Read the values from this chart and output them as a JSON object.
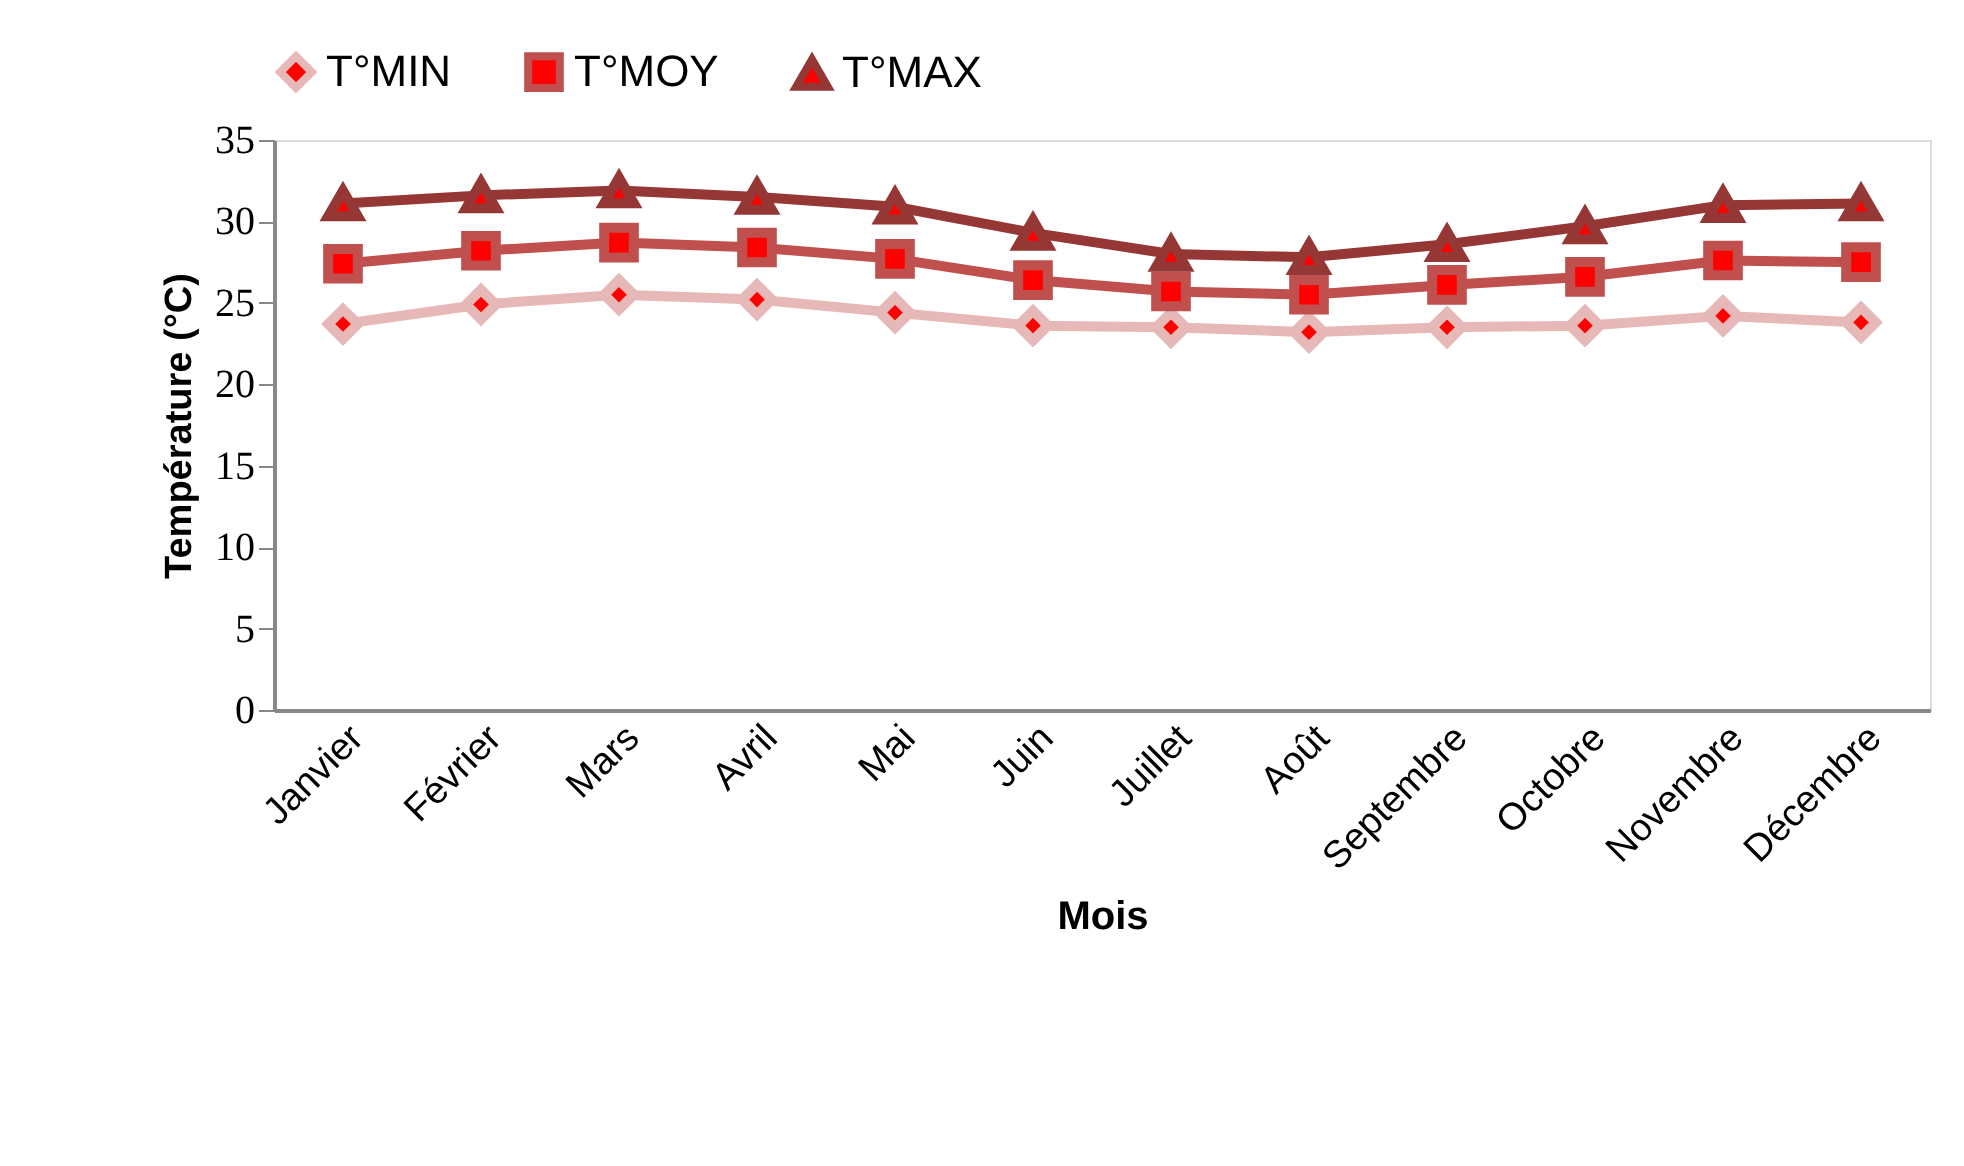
{
  "chart_data": {
    "type": "line",
    "xlabel": "Mois",
    "ylabel": "Température (°C)",
    "categories": [
      "Janvier",
      "Février",
      "Mars",
      "Avril",
      "Mai",
      "Juin",
      "Juillet",
      "Août",
      "Septembre",
      "Octobre",
      "Novembre",
      "Décembre"
    ],
    "series": [
      {
        "name": "T°MIN",
        "color": "#e6b8b7",
        "marker": "diamond",
        "values": [
          23.7,
          24.9,
          25.5,
          25.2,
          24.4,
          23.6,
          23.5,
          23.2,
          23.5,
          23.6,
          24.2,
          23.8
        ]
      },
      {
        "name": "T°MOY",
        "color": "#c0504d",
        "marker": "square",
        "values": [
          27.4,
          28.2,
          28.7,
          28.4,
          27.7,
          26.4,
          25.7,
          25.5,
          26.1,
          26.6,
          27.6,
          27.5
        ]
      },
      {
        "name": "T°MAX",
        "color": "#953735",
        "marker": "triangle",
        "values": [
          31.1,
          31.6,
          31.9,
          31.5,
          30.9,
          29.3,
          28.0,
          27.8,
          28.6,
          29.7,
          31.0,
          31.1
        ]
      }
    ],
    "ylim": [
      0,
      35
    ],
    "yticks": [
      0,
      5,
      10,
      15,
      20,
      25,
      30,
      35
    ],
    "grid": false,
    "legend": "top",
    "line_style": "solid"
  }
}
